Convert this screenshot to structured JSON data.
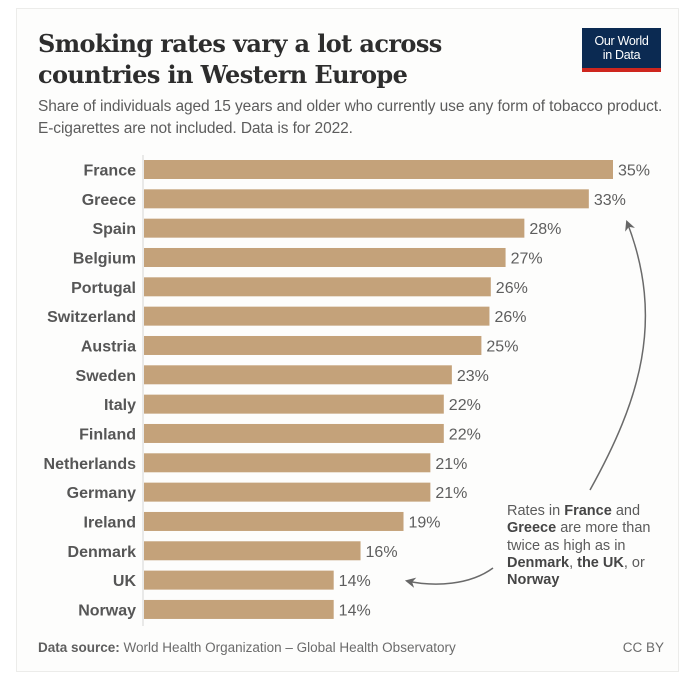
{
  "brand": {
    "logo_line1": "Our World",
    "logo_line2": "in Data",
    "logo_bg": "#0b2a52",
    "logo_accent": "#ce261e"
  },
  "chart_data": {
    "type": "bar",
    "orientation": "horizontal",
    "title": "Smoking rates vary a lot across countries in Western Europe",
    "subtitle": "Share of individuals aged 15 years and older who currently use any form of tobacco product. E-cigarettes are not included. Data is for 2022.",
    "xlabel": "",
    "ylabel": "",
    "xlim": [
      0,
      35
    ],
    "grid": false,
    "bar_color": "#c4a27a",
    "categories": [
      "France",
      "Greece",
      "Spain",
      "Belgium",
      "Portugal",
      "Switzerland",
      "Austria",
      "Sweden",
      "Italy",
      "Finland",
      "Netherlands",
      "Germany",
      "Ireland",
      "Denmark",
      "UK",
      "Norway"
    ],
    "values": [
      35.0,
      33.2,
      28.4,
      27.0,
      25.9,
      25.8,
      25.2,
      23.0,
      22.4,
      22.4,
      21.4,
      21.4,
      19.4,
      16.2,
      14.2,
      14.2
    ],
    "value_labels": [
      "35%",
      "33%",
      "28%",
      "27%",
      "26%",
      "26%",
      "25%",
      "23%",
      "22%",
      "22%",
      "21%",
      "21%",
      "19%",
      "16%",
      "14%",
      "14%"
    ],
    "annotation": {
      "parts": [
        {
          "text": "Rates in ",
          "bold": false
        },
        {
          "text": "France",
          "bold": true
        },
        {
          "text": " and ",
          "bold": false
        },
        {
          "text": "Greece",
          "bold": true
        },
        {
          "text": " are more than twice as high as in ",
          "bold": false
        },
        {
          "text": "Denmark",
          "bold": true
        },
        {
          "text": ", ",
          "bold": false
        },
        {
          "text": "the UK",
          "bold": true
        },
        {
          "text": ", or ",
          "bold": false
        },
        {
          "text": "Norway",
          "bold": true
        }
      ]
    }
  },
  "footer": {
    "source_label": "Data source:",
    "source_text": "World Health Organization – Global Health Observatory",
    "license": "CC BY"
  }
}
